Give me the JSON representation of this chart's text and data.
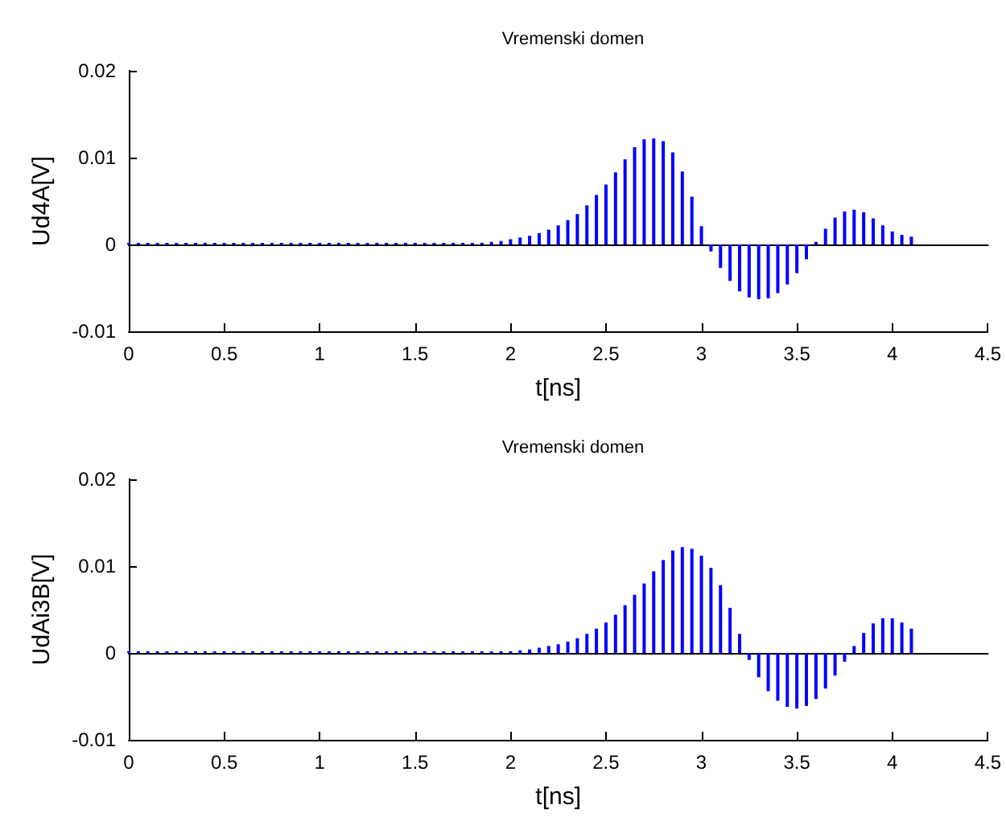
{
  "chart_data": [
    {
      "type": "bar",
      "title": "Vremenski domen",
      "xlabel": "t[ns]",
      "ylabel": "Ud4A[V]",
      "xlim": [
        0,
        4.5
      ],
      "xticks": [
        0,
        0.5,
        1,
        1.5,
        2,
        2.5,
        3,
        3.5,
        4,
        4.5
      ],
      "ylim": [
        -0.01,
        0.02
      ],
      "yticks": [
        -0.01,
        0,
        0.01,
        0.02
      ],
      "x": [
        0,
        0.05,
        0.1,
        0.15,
        0.2,
        0.25,
        0.3,
        0.35,
        0.4,
        0.45,
        0.5,
        0.55,
        0.6,
        0.65,
        0.7,
        0.75,
        0.8,
        0.85,
        0.9,
        0.95,
        1,
        1.05,
        1.1,
        1.15,
        1.2,
        1.25,
        1.3,
        1.35,
        1.4,
        1.45,
        1.5,
        1.55,
        1.6,
        1.65,
        1.7,
        1.75,
        1.8,
        1.85,
        1.9,
        1.95,
        2,
        2.05,
        2.1,
        2.15,
        2.2,
        2.25,
        2.3,
        2.35,
        2.4,
        2.45,
        2.5,
        2.55,
        2.6,
        2.65,
        2.7,
        2.75,
        2.8,
        2.85,
        2.9,
        2.95,
        3,
        3.05,
        3.1,
        3.15,
        3.2,
        3.25,
        3.3,
        3.35,
        3.4,
        3.45,
        3.5,
        3.55,
        3.6,
        3.65,
        3.7,
        3.75,
        3.8,
        3.85,
        3.9,
        3.95,
        4,
        4.05,
        4.1
      ],
      "series": [
        {
          "color": "#0000ff",
          "values": [
            0,
            0,
            0,
            0,
            0,
            0,
            0,
            0,
            0,
            0,
            0,
            0,
            0,
            0,
            0,
            0,
            0,
            0,
            0,
            0,
            0,
            0,
            0,
            0,
            0,
            0,
            0,
            0,
            0,
            0,
            0,
            0,
            0,
            0,
            0,
            0,
            0,
            0.0002,
            0.0003,
            0.0004,
            0.0006,
            0.0008,
            0.001,
            0.0013,
            0.0017,
            0.0022,
            0.0028,
            0.0035,
            0.0045,
            0.0057,
            0.0069,
            0.0083,
            0.0098,
            0.0112,
            0.0121,
            0.0122,
            0.0119,
            0.0106,
            0.0084,
            0.0055,
            0.0021,
            -0.0008,
            -0.0027,
            -0.0042,
            -0.0054,
            -0.0061,
            -0.0063,
            -0.0062,
            -0.0056,
            -0.0046,
            -0.0033,
            -0.0017,
            0.0003,
            0.0018,
            0.0031,
            0.0038,
            0.004,
            0.0037,
            0.003,
            0.0022,
            0.0015,
            0.0011,
            0.0009
          ]
        }
      ]
    },
    {
      "type": "bar",
      "title": "Vremenski domen",
      "xlabel": "t[ns]",
      "ylabel": "UdAi3B[V]",
      "xlim": [
        0,
        4.5
      ],
      "xticks": [
        0,
        0.5,
        1,
        1.5,
        2,
        2.5,
        3,
        3.5,
        4,
        4.5
      ],
      "ylim": [
        -0.01,
        0.02
      ],
      "yticks": [
        -0.01,
        0,
        0.01,
        0.02
      ],
      "x": [
        0,
        0.05,
        0.1,
        0.15,
        0.2,
        0.25,
        0.3,
        0.35,
        0.4,
        0.45,
        0.5,
        0.55,
        0.6,
        0.65,
        0.7,
        0.75,
        0.8,
        0.85,
        0.9,
        0.95,
        1,
        1.05,
        1.1,
        1.15,
        1.2,
        1.25,
        1.3,
        1.35,
        1.4,
        1.45,
        1.5,
        1.55,
        1.6,
        1.65,
        1.7,
        1.75,
        1.8,
        1.85,
        1.9,
        1.95,
        2,
        2.05,
        2.1,
        2.15,
        2.2,
        2.25,
        2.3,
        2.35,
        2.4,
        2.45,
        2.5,
        2.55,
        2.6,
        2.65,
        2.7,
        2.75,
        2.8,
        2.85,
        2.9,
        2.95,
        3,
        3.05,
        3.1,
        3.15,
        3.2,
        3.25,
        3.3,
        3.35,
        3.4,
        3.45,
        3.5,
        3.55,
        3.6,
        3.65,
        3.7,
        3.75,
        3.8,
        3.85,
        3.9,
        3.95,
        4,
        4.05,
        4.1
      ],
      "series": [
        {
          "color": "#0000ff",
          "values": [
            0,
            0,
            0,
            0,
            0,
            0,
            0,
            0,
            0,
            0,
            0,
            0,
            0,
            0,
            0,
            0,
            0,
            0,
            0,
            0,
            0,
            0,
            0,
            0,
            0,
            0,
            0,
            0,
            0,
            0,
            0,
            0,
            0,
            0,
            0,
            0,
            0,
            0,
            0,
            0,
            0.0002,
            0.0003,
            0.0004,
            0.0006,
            0.0008,
            0.001,
            0.0013,
            0.0017,
            0.0022,
            0.0028,
            0.0035,
            0.0044,
            0.0055,
            0.0067,
            0.008,
            0.0094,
            0.0107,
            0.0118,
            0.0122,
            0.012,
            0.0112,
            0.0098,
            0.0078,
            0.0052,
            0.0022,
            -0.0008,
            -0.0028,
            -0.0044,
            -0.0055,
            -0.0062,
            -0.0064,
            -0.0061,
            -0.0053,
            -0.0041,
            -0.0026,
            -0.001,
            0.0008,
            0.0023,
            0.0034,
            0.004,
            0.004,
            0.0035,
            0.0028
          ]
        }
      ]
    }
  ]
}
